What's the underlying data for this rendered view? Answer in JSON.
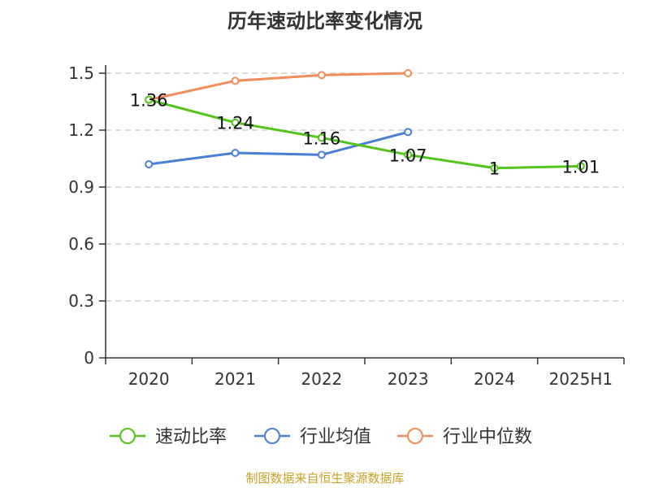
{
  "chart_data": {
    "type": "line",
    "title": "历年速动比率变化情况",
    "categories": [
      "2020",
      "2021",
      "2022",
      "2023",
      "2024",
      "2025H1"
    ],
    "ylim": [
      0,
      1.5
    ],
    "yticks": [
      "0",
      "0.3",
      "0.6",
      "0.9",
      "1.2",
      "1.5"
    ],
    "grid": true,
    "legend_position": "bottom",
    "series": [
      {
        "name": "速动比率",
        "color": "#52c41a",
        "values": [
          1.36,
          1.24,
          1.16,
          1.07,
          1.0,
          1.01
        ],
        "labels": [
          "1.36",
          "1.24",
          "1.16",
          "1.07",
          "1",
          "1.01"
        ]
      },
      {
        "name": "行业均值",
        "color": "#4a7fd6",
        "values": [
          1.02,
          1.08,
          1.07,
          1.19,
          null,
          null
        ]
      },
      {
        "name": "行业中位数",
        "color": "#f28c5a",
        "values": [
          1.36,
          1.46,
          1.49,
          1.5,
          null,
          null
        ]
      }
    ]
  },
  "source": "制图数据来自恒生聚源数据库"
}
